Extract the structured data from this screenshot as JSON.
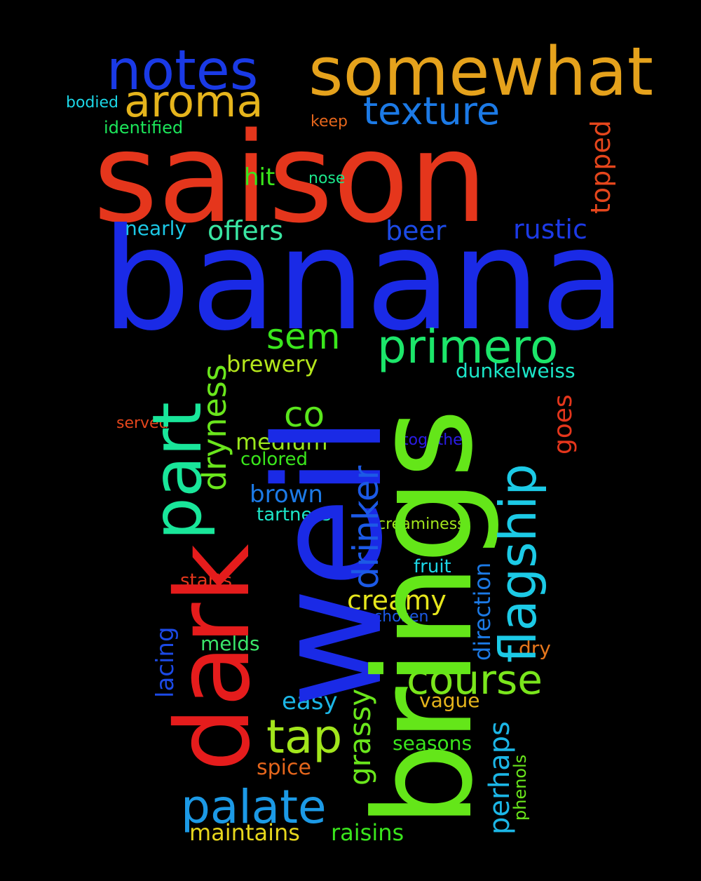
{
  "words": [
    {
      "id": "saison",
      "text": "saison",
      "color": "#e5361c"
    },
    {
      "id": "banana",
      "text": "banana",
      "color": "#1a2ae6"
    },
    {
      "id": "weil",
      "text": "weil",
      "color": "#1a2ae6"
    },
    {
      "id": "brings",
      "text": "brings",
      "color": "#64e619"
    },
    {
      "id": "dark",
      "text": "dark",
      "color": "#e51c1c"
    },
    {
      "id": "somewhat",
      "text": "somewhat",
      "color": "#e5a21c"
    },
    {
      "id": "notes",
      "text": "notes",
      "color": "#1a3ae6"
    },
    {
      "id": "aroma",
      "text": "aroma",
      "color": "#e5b41c"
    },
    {
      "id": "texture",
      "text": "texture",
      "color": "#1c7ae6"
    },
    {
      "id": "part",
      "text": "part",
      "color": "#19e69a"
    },
    {
      "id": "primero",
      "text": "primero",
      "color": "#1ce66a"
    },
    {
      "id": "flagship",
      "text": "flagship",
      "color": "#1ccae6"
    },
    {
      "id": "palate",
      "text": "palate",
      "color": "#1c9ae6"
    },
    {
      "id": "course",
      "text": "course",
      "color": "#7ae61c"
    },
    {
      "id": "tap",
      "text": "tap",
      "color": "#a2e61c"
    },
    {
      "id": "sem",
      "text": "sem",
      "color": "#3ae61c"
    },
    {
      "id": "co",
      "text": "co",
      "color": "#5ae61c"
    },
    {
      "id": "dryness",
      "text": "dryness",
      "color": "#6ae61c"
    },
    {
      "id": "drinker",
      "text": "drinker",
      "color": "#1c5ae6"
    },
    {
      "id": "topped",
      "text": "topped",
      "color": "#e5461c"
    },
    {
      "id": "rustic",
      "text": "rustic",
      "color": "#1c3ae6"
    },
    {
      "id": "beer",
      "text": "beer",
      "color": "#1c4ae6"
    },
    {
      "id": "offers",
      "text": "offers",
      "color": "#3ae6a2"
    },
    {
      "id": "nearly",
      "text": "nearly",
      "color": "#1cc8e6"
    },
    {
      "id": "hit",
      "text": "hit",
      "color": "#3ae61c"
    },
    {
      "id": "nose",
      "text": "nose",
      "color": "#1ce68a"
    },
    {
      "id": "keep",
      "text": "keep",
      "color": "#e5661c"
    },
    {
      "id": "bodied",
      "text": "bodied",
      "color": "#1cd6e6"
    },
    {
      "id": "identified",
      "text": "identified",
      "color": "#1ce65a"
    },
    {
      "id": "brewery",
      "text": "brewery",
      "color": "#b4e61c"
    },
    {
      "id": "dunkelweiss",
      "text": "dunkelweiss",
      "color": "#1ce6c8"
    },
    {
      "id": "goes",
      "text": "goes",
      "color": "#e5361c"
    },
    {
      "id": "served",
      "text": "served",
      "color": "#e5461c"
    },
    {
      "id": "together",
      "text": "together",
      "color": "#2a1ce6"
    },
    {
      "id": "medium",
      "text": "medium",
      "color": "#9ae61c"
    },
    {
      "id": "colored",
      "text": "colored",
      "color": "#3ae61c"
    },
    {
      "id": "brown",
      "text": "brown",
      "color": "#1c7ae6"
    },
    {
      "id": "tartness",
      "text": "tartness",
      "color": "#1ce6c8"
    },
    {
      "id": "creaminess",
      "text": "creaminess",
      "color": "#a2e61c"
    },
    {
      "id": "direction",
      "text": "direction",
      "color": "#1c7ae6"
    },
    {
      "id": "fruit",
      "text": "fruit",
      "color": "#1cd6e6"
    },
    {
      "id": "starts",
      "text": "starts",
      "color": "#e5361c"
    },
    {
      "id": "creamy",
      "text": "creamy",
      "color": "#e6e61c"
    },
    {
      "id": "chosen",
      "text": "chosen",
      "color": "#1c5ae6"
    },
    {
      "id": "lacing",
      "text": "lacing",
      "color": "#1c4ae6"
    },
    {
      "id": "melds",
      "text": "melds",
      "color": "#3ae66a"
    },
    {
      "id": "dry",
      "text": "dry",
      "color": "#e5761c"
    },
    {
      "id": "easy",
      "text": "easy",
      "color": "#1cb6e6"
    },
    {
      "id": "grassy",
      "text": "grassy",
      "color": "#6ae61c"
    },
    {
      "id": "vague",
      "text": "vague",
      "color": "#e5b41c"
    },
    {
      "id": "seasons",
      "text": "seasons",
      "color": "#3ae61c"
    },
    {
      "id": "perhaps",
      "text": "perhaps",
      "color": "#1cb6e6"
    },
    {
      "id": "phenols",
      "text": "phenols",
      "color": "#6ae61c"
    },
    {
      "id": "spice",
      "text": "spice",
      "color": "#e5661c"
    },
    {
      "id": "maintains",
      "text": "maintains",
      "color": "#e6d61c"
    },
    {
      "id": "raisins",
      "text": "raisins",
      "color": "#3ae61c"
    }
  ]
}
